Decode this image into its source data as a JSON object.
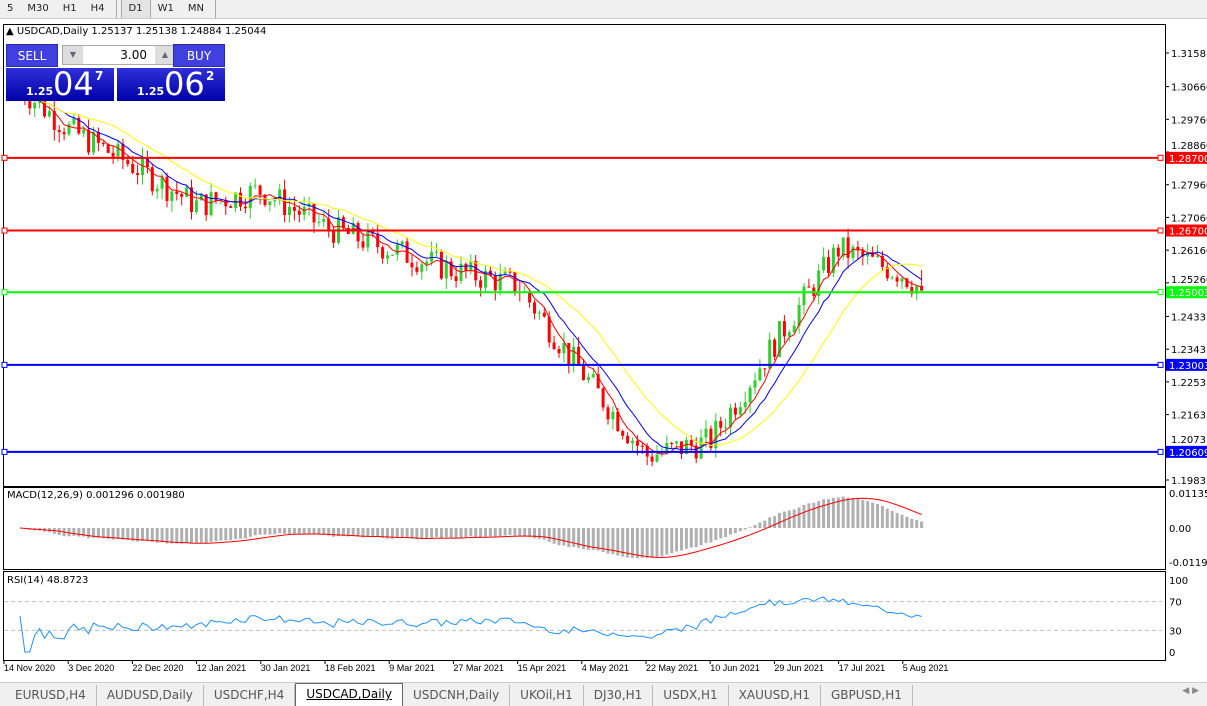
{
  "toolbar": {
    "timeframes": [
      "5",
      "M30",
      "H1",
      "H4",
      "D1",
      "W1",
      "MN"
    ],
    "active": "D1"
  },
  "chart": {
    "symbol_info": "USDCAD,Daily  1.25137 1.25138 1.24884 1.25044",
    "trade_panel": {
      "sell_label": "SELL",
      "buy_label": "BUY",
      "lot": "3.00",
      "sell_small": "1.25",
      "sell_big": "04",
      "sell_pip": "7",
      "buy_small": "1.25",
      "buy_big": "06",
      "buy_pip": "2"
    },
    "price_axis": [
      "1.31585",
      "1.30660",
      "1.29760",
      "1.28860",
      "1.27960",
      "1.27060",
      "1.26160",
      "1.25260",
      "1.24335",
      "1.23435",
      "1.22535",
      "1.21635",
      "1.20735",
      "1.19835"
    ],
    "levels": [
      {
        "price": 1.287,
        "label": "1.28700",
        "color": "#ff0000"
      },
      {
        "price": 1.267,
        "label": "1.26700",
        "color": "#ff0000"
      },
      {
        "price": 1.25003,
        "label": "1.25003",
        "color": "#00ff00"
      },
      {
        "price": 1.23003,
        "label": "1.23003",
        "color": "#0000ff"
      },
      {
        "price": 1.20609,
        "label": "1.20609",
        "color": "#0000ff"
      }
    ],
    "date_axis": [
      "14 Nov 2020",
      "3 Dec 2020",
      "22 Dec 2020",
      "12 Jan 2021",
      "30 Jan 2021",
      "18 Feb 2021",
      "9 Mar 2021",
      "27 Mar 2021",
      "15 Apr 2021",
      "4 May 2021",
      "22 May 2021",
      "10 Jun 2021",
      "29 Jun 2021",
      "17 Jul 2021",
      "5 Aug 2021"
    ],
    "approx_close_at_dates": [
      1.31,
      1.295,
      1.285,
      1.274,
      1.278,
      1.268,
      1.262,
      1.256,
      1.252,
      1.228,
      1.205,
      1.209,
      1.236,
      1.262,
      1.255
    ],
    "last_close": 1.25044,
    "colors": {
      "bull": "#32cd32",
      "bear": "#ff0000",
      "ma_fast": "#ff0000",
      "ma_mid": "#0000ff",
      "ma_slow": "#ffff00"
    }
  },
  "macd": {
    "label": "MACD(12,26,9) 0.001296 0.001980",
    "axis": [
      "0.01135",
      "0.00",
      "-0.011904"
    ]
  },
  "rsi": {
    "label": "RSI(14) 48.8723",
    "axis": [
      "100",
      "70",
      "30",
      "0"
    ]
  },
  "tabs": [
    "EURUSD,H4",
    "AUDUSD,Daily",
    "USDCHF,H4",
    "USDCAD,Daily",
    "USDCNH,Daily",
    "UKOil,H1",
    "DJ30,H1",
    "USDX,H1",
    "XAUUSD,H1",
    "GBPUSD,H1"
  ],
  "active_tab": "USDCAD,Daily"
}
